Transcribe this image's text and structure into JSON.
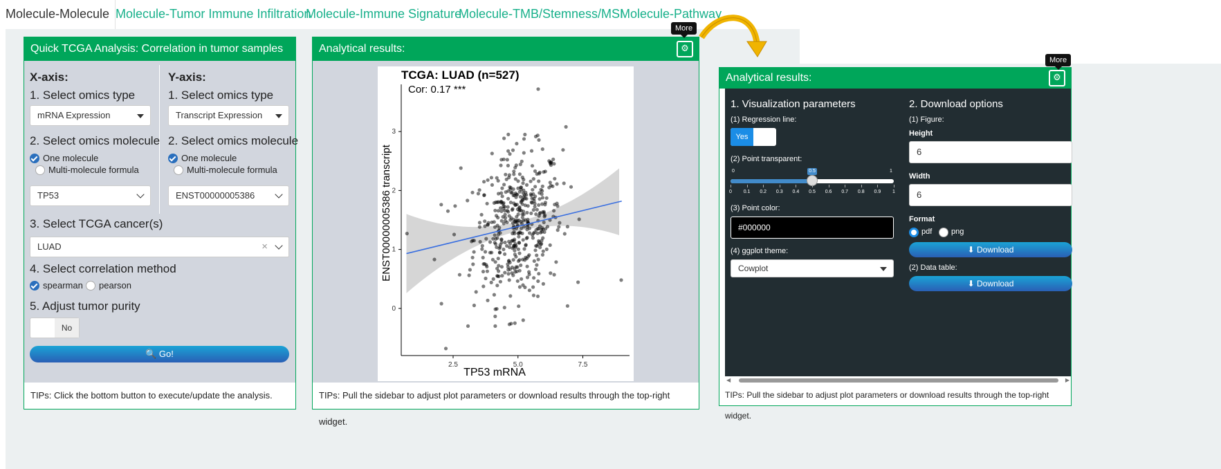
{
  "tabs": [
    "Molecule-Molecule",
    "Molecule-Tumor Immune Infiltration",
    "Molecule-Immune Signature",
    "Molecule-TMB/Stemness/MSI",
    "Molecule-Pathway"
  ],
  "left_panel": {
    "title": "Quick TCGA Analysis: Correlation in tumor samples",
    "x_axis": {
      "header": "X-axis:",
      "step1": "1. Select omics type",
      "omics_type": "mRNA Expression",
      "step2": "2. Select omics molecule",
      "opt_one": "One molecule",
      "opt_multi": "Multi-molecule formula",
      "molecule": "TP53"
    },
    "y_axis": {
      "header": "Y-axis:",
      "step1": "1. Select omics type",
      "omics_type": "Transcript Expression",
      "step2": "2. Select omics molecule",
      "opt_one": "One molecule",
      "opt_multi": "Multi-molecule formula",
      "molecule": "ENST00000005386"
    },
    "step3": "3. Select TCGA cancer(s)",
    "cancer": "LUAD",
    "step4": "4. Select correlation method",
    "method_spearman": "spearman",
    "method_pearson": "pearson",
    "step5": "5. Adjust tumor purity",
    "purity_toggle": "No",
    "go_button": "Go!",
    "tips": "TIPs: Click the bottom button to execute/update the analysis."
  },
  "middle_panel": {
    "title": "Analytical results:",
    "more_tooltip": "More",
    "tips": "TIPs: Pull the sidebar to adjust plot parameters or download results through the top-right widget."
  },
  "chart_data": {
    "type": "scatter",
    "title": "TCGA: LUAD (n=527)",
    "subtitle": "Cor: 0.17 ***",
    "xlabel": "TP53 mRNA",
    "ylabel": "ENST00000005386 transcript",
    "xlim": [
      0.5,
      9.3
    ],
    "ylim": [
      -0.8,
      3.8
    ],
    "xticks": [
      2.5,
      5.0,
      7.5
    ],
    "xtick_labels": [
      "2.5",
      "5.0",
      "7.5"
    ],
    "yticks": [
      0,
      1,
      2,
      3
    ],
    "ytick_labels": [
      "0",
      "1",
      "2",
      "3"
    ],
    "grid": false,
    "point_color": "#000000",
    "point_alpha": 0.5,
    "regression": {
      "x": [
        0.7,
        9.0
      ],
      "y": [
        0.93,
        1.82
      ],
      "color": "#3a6fe0",
      "band": "#c8c8c8"
    },
    "points": [
      [
        0.72,
        1.27
      ],
      [
        8.98,
        0.48
      ],
      [
        2.05,
        0.08
      ],
      [
        2.22,
        -0.68
      ],
      [
        5.78,
        3.72
      ],
      [
        6.85,
        3.08
      ],
      [
        1.78,
        0.83
      ],
      [
        2.8,
        2.38
      ],
      [
        2.3,
        1.65
      ],
      [
        6.2,
        2.05
      ],
      [
        4.88,
        -0.25
      ],
      [
        5.2,
        -0.2
      ]
    ]
  },
  "right_panel": {
    "title": "Analytical results:",
    "more_tooltip": "More",
    "vis_header": "1. Visualization parameters",
    "regression_label": "(1) Regression line:",
    "regression_yes": "Yes",
    "transparent_label": "(2) Point transparent:",
    "slider": {
      "min": "0",
      "max": "1",
      "value": 0.5,
      "value_label": "0.5",
      "ticks": [
        "0",
        "0.1",
        "0.2",
        "0.3",
        "0.4",
        "0.5",
        "0.6",
        "0.7",
        "0.8",
        "0.9",
        "1"
      ]
    },
    "color_label": "(3) Point color:",
    "color_value": "#000000",
    "theme_label": "(4) ggplot theme:",
    "theme_value": "Cowplot",
    "dl_header": "2. Download options",
    "figure_label": "(1) Figure:",
    "height_label": "Height",
    "height_value": "6",
    "width_label": "Width",
    "width_value": "6",
    "format_label": "Format",
    "format_pdf": "pdf",
    "format_png": "png",
    "download_label": "Download",
    "datatable_label": "(2) Data table:",
    "download2_label": "Download",
    "tips": "TIPs: Pull the sidebar to adjust plot parameters or download results through the top-right widget."
  },
  "colors": {
    "green": "#00a65a",
    "tab_teal": "#17b08a",
    "dark": "#222d32",
    "arrow": "#f0b400"
  }
}
